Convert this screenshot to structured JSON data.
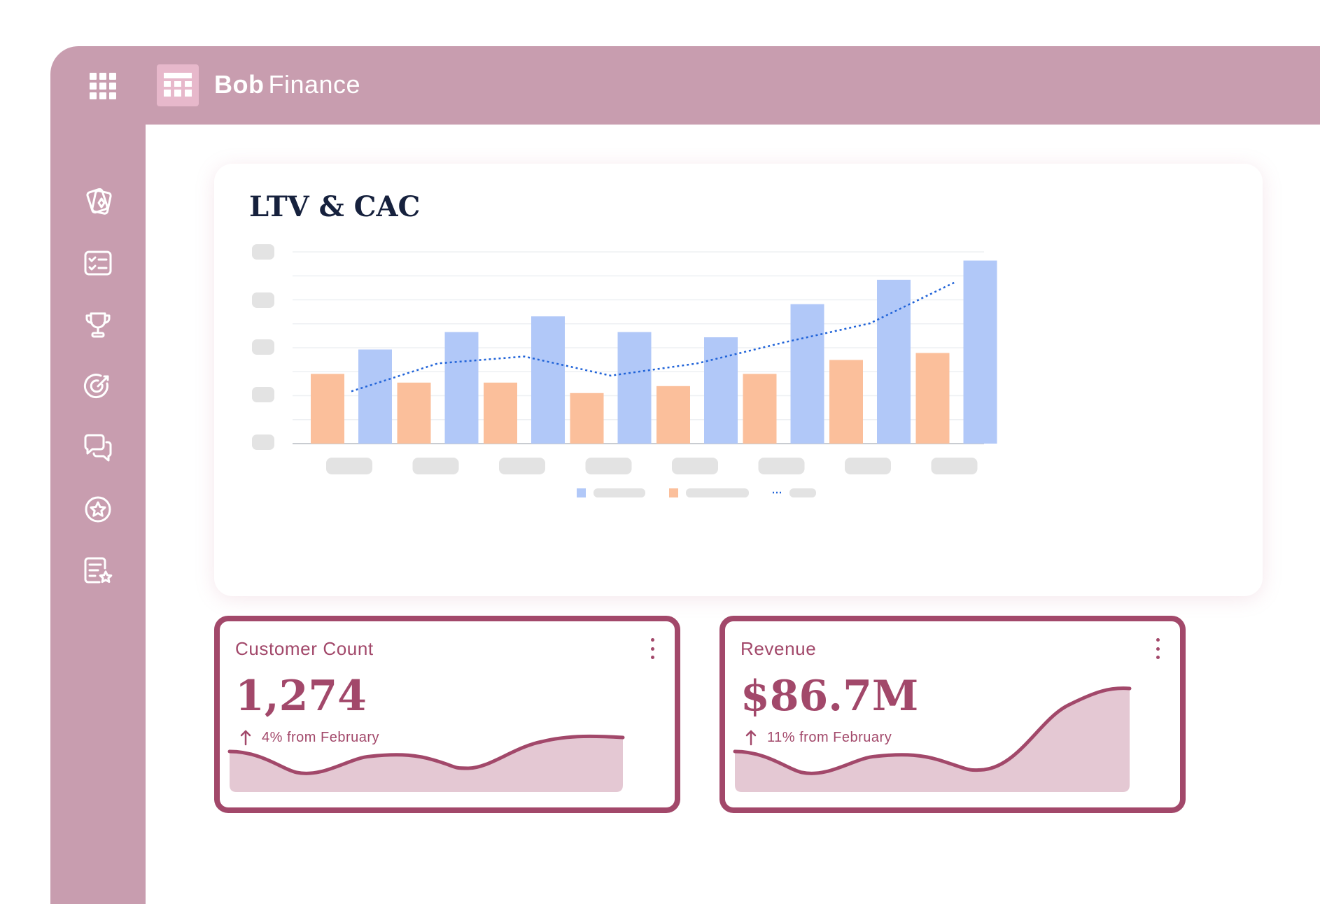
{
  "app": {
    "brand_bold": "Bob",
    "brand_light": "Finance"
  },
  "sidebar": {
    "icons": [
      "cards-icon",
      "checklist-icon",
      "trophy-icon",
      "target-icon",
      "chat-icon",
      "star-badge-icon",
      "review-doc-icon"
    ]
  },
  "chart": {
    "title": "LTV & CAC"
  },
  "chart_data": {
    "type": "bar",
    "categories": [
      "",
      "",
      "",
      "",
      "",
      "",
      "",
      ""
    ],
    "series": [
      {
        "values": [
          40,
          35,
          35,
          29,
          33,
          40,
          48,
          52
        ],
        "color": "#fbbf9b"
      },
      {
        "values": [
          54,
          64,
          73,
          64,
          61,
          80,
          94,
          105
        ],
        "color": "#b1c8f8"
      },
      {
        "values": [
          30,
          46,
          50,
          39,
          46,
          58,
          69,
          93
        ],
        "color": "#2063d8",
        "style": "dotted-line"
      }
    ],
    "ylim": [
      0,
      110
    ],
    "grid": true,
    "legend": "bottom-center"
  },
  "cards": {
    "customer": {
      "title": "Customer Count",
      "value": "1,274",
      "change": "4% from February"
    },
    "revenue": {
      "title": "Revenue",
      "value": "$86.7M",
      "change": "11% from February"
    }
  },
  "colors": {
    "frame": "#c89daf",
    "accent": "#a2486a",
    "ltv_bar": "#b1c8f8",
    "cac_bar": "#fbbf9b",
    "trend_line": "#2063d8"
  }
}
